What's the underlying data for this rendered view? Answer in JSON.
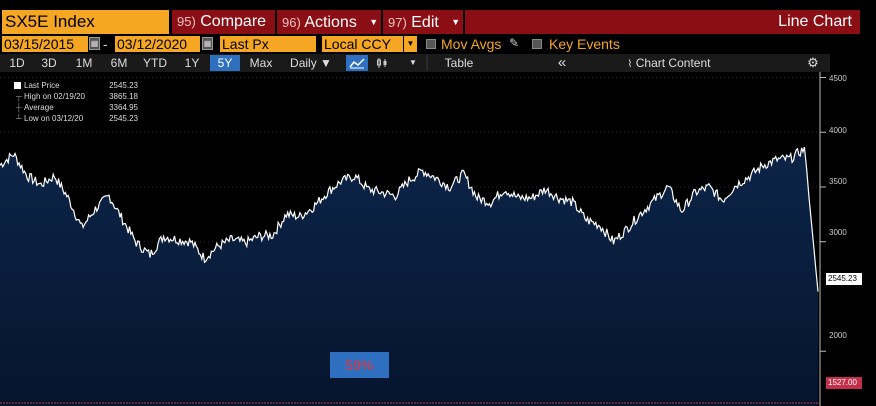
{
  "header": {
    "security": "SX5E Index",
    "compare": {
      "num": "95)",
      "label": "Compare"
    },
    "actions": {
      "num": "96)",
      "label": "Actions"
    },
    "edit": {
      "num": "97)",
      "label": "Edit"
    },
    "chart_title": "Line Chart"
  },
  "settings": {
    "start_date": "03/15/2015",
    "end_date": "03/12/2020",
    "field": "Last Px",
    "currency": "Local CCY",
    "mov_avgs": "Mov Avgs",
    "key_events": "Key Events"
  },
  "toolbar": {
    "periods": [
      "1D",
      "3D",
      "1M",
      "6M",
      "YTD",
      "1Y",
      "5Y",
      "Max"
    ],
    "active_period": "5Y",
    "frequency": "Daily ▼",
    "table": "Table",
    "collapse": "«",
    "chart_content": "Chart Content",
    "settings_icon": "gear-icon"
  },
  "legend": {
    "rows": [
      {
        "key": "Last Price",
        "value": "2545.23"
      },
      {
        "key": "High on 02/19/20",
        "value": "3865.18"
      },
      {
        "key": "Average",
        "value": "3364.95"
      },
      {
        "key": "Low on 03/12/20",
        "value": "2545.23"
      }
    ]
  },
  "overlay": {
    "percent": "59%"
  },
  "chart_data": {
    "type": "area",
    "ylim": [
      1500,
      4550
    ],
    "yticks": [
      "4500",
      "4000",
      "3500",
      "3000",
      "2000"
    ],
    "last_label": "2545.23",
    "line_label": "1527.00",
    "x": [
      "2015-03",
      "2015-04",
      "2015-05",
      "2015-06",
      "2015-07",
      "2015-08",
      "2015-09",
      "2015-10",
      "2015-11",
      "2015-12",
      "2016-01",
      "2016-02",
      "2016-03",
      "2016-04",
      "2016-05",
      "2016-06",
      "2016-07",
      "2016-08",
      "2016-09",
      "2016-10",
      "2016-11",
      "2016-12",
      "2017-01",
      "2017-02",
      "2017-03",
      "2017-04",
      "2017-05",
      "2017-06",
      "2017-07",
      "2017-08",
      "2017-09",
      "2017-10",
      "2017-11",
      "2017-12",
      "2018-01",
      "2018-02",
      "2018-03",
      "2018-04",
      "2018-05",
      "2018-06",
      "2018-07",
      "2018-08",
      "2018-09",
      "2018-10",
      "2018-11",
      "2018-12",
      "2019-01",
      "2019-02",
      "2019-03",
      "2019-04",
      "2019-05",
      "2019-06",
      "2019-07",
      "2019-08",
      "2019-09",
      "2019-10",
      "2019-11",
      "2019-12",
      "2020-01",
      "2020-02",
      "2020-03"
    ],
    "values": [
      3700,
      3800,
      3600,
      3520,
      3600,
      3400,
      3130,
      3300,
      3420,
      3200,
      2990,
      2880,
      3050,
      3020,
      3000,
      2850,
      2960,
      3020,
      2990,
      3050,
      3060,
      3250,
      3230,
      3320,
      3450,
      3550,
      3600,
      3480,
      3450,
      3420,
      3560,
      3650,
      3580,
      3500,
      3620,
      3400,
      3360,
      3480,
      3400,
      3400,
      3480,
      3400,
      3360,
      3200,
      3150,
      3000,
      3120,
      3260,
      3380,
      3500,
      3280,
      3450,
      3500,
      3380,
      3520,
      3600,
      3700,
      3750,
      3760,
      3850,
      2545
    ]
  }
}
